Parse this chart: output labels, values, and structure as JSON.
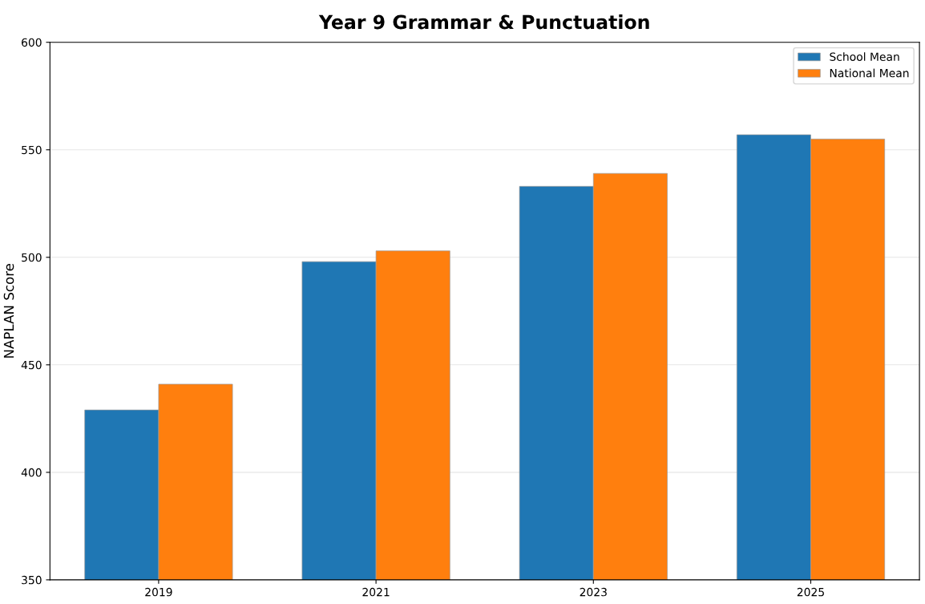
{
  "chart_data": {
    "type": "bar",
    "title": "Year 9 Grammar & Punctuation",
    "ylabel": "NAPLAN Score",
    "categories": [
      "2019",
      "2021",
      "2023",
      "2025"
    ],
    "series": [
      {
        "name": "School Mean",
        "color": "#1f77b4",
        "values": [
          429,
          498,
          533,
          557
        ]
      },
      {
        "name": "National Mean",
        "color": "#ff7f0e",
        "values": [
          441,
          503,
          539,
          555
        ]
      }
    ],
    "ylim": [
      350,
      600
    ],
    "yticks": [
      350,
      400,
      450,
      500,
      550,
      600
    ],
    "grid": "y",
    "legend": "top right"
  }
}
